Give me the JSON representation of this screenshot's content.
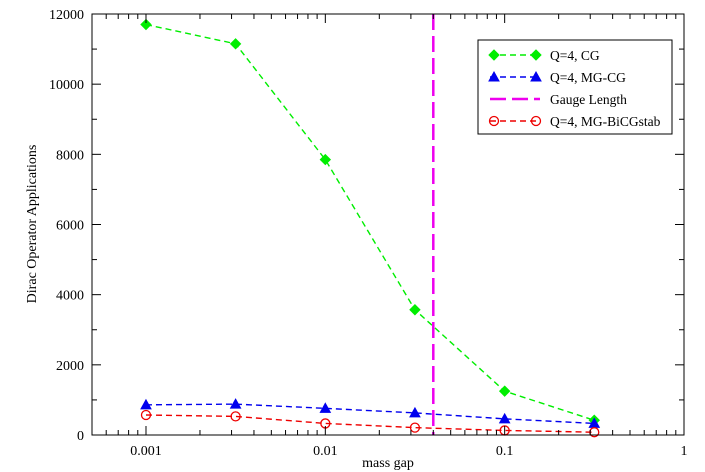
{
  "chart_data": {
    "type": "line",
    "title": "",
    "xlabel": "mass gap",
    "ylabel": "Dirac Operator Applications",
    "xscale": "log",
    "xlim": [
      0.0005,
      1
    ],
    "ylim": [
      0,
      12000
    ],
    "x_ticks": [
      {
        "value": 0.001,
        "label": "0.001"
      },
      {
        "value": 0.01,
        "label": "0.01"
      },
      {
        "value": 0.1,
        "label": "0.1"
      },
      {
        "value": 1,
        "label": "1"
      }
    ],
    "y_ticks": [
      {
        "value": 0,
        "label": "0"
      },
      {
        "value": 2000,
        "label": "2000"
      },
      {
        "value": 4000,
        "label": "4000"
      },
      {
        "value": 6000,
        "label": "6000"
      },
      {
        "value": 8000,
        "label": "8000"
      },
      {
        "value": 10000,
        "label": "10000"
      },
      {
        "value": 12000,
        "label": "12000"
      }
    ],
    "grid": false,
    "legend_position": "top-right",
    "series": [
      {
        "name": "Q=4, CG",
        "color": "#00ee00",
        "marker": "diamond",
        "line": "dashed",
        "x": [
          0.001,
          0.00316,
          0.01,
          0.0316,
          0.1,
          0.316
        ],
        "y": [
          11700,
          11150,
          7850,
          3570,
          1250,
          420
        ]
      },
      {
        "name": "Q=4, MG-CG",
        "color": "#0000ee",
        "marker": "triangle",
        "line": "dashed",
        "x": [
          0.001,
          0.00316,
          0.01,
          0.0316,
          0.1,
          0.316
        ],
        "y": [
          860,
          880,
          760,
          630,
          460,
          330
        ]
      },
      {
        "name": "Gauge Length",
        "color": "#ee00ee",
        "marker": "none",
        "line": "long-dashed",
        "orientation": "vertical",
        "x_value": 0.04
      },
      {
        "name": "Q=4, MG-BiCGstab",
        "color": "#ee0000",
        "marker": "open-circle",
        "line": "dashed",
        "x": [
          0.001,
          0.00316,
          0.01,
          0.0316,
          0.1,
          0.316
        ],
        "y": [
          570,
          530,
          330,
          210,
          130,
          80
        ]
      }
    ]
  }
}
